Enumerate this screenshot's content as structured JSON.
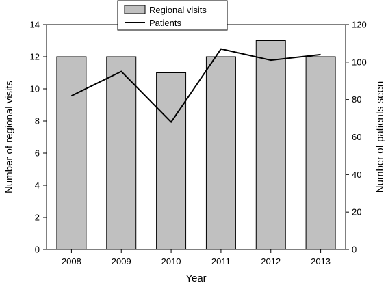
{
  "chart_data": {
    "type": "bar",
    "categories": [
      "2008",
      "2009",
      "2010",
      "2011",
      "2012",
      "2013"
    ],
    "xlabel": "Year",
    "left_axis": {
      "label": "Number of regional visits",
      "ylim": [
        0,
        14
      ],
      "ticks": [
        "0",
        "2",
        "4",
        "6",
        "8",
        "10",
        "12",
        "14"
      ]
    },
    "right_axis": {
      "label": "Number of patients seen",
      "ylim": [
        0,
        120
      ],
      "ticks": [
        "0",
        "20",
        "40",
        "60",
        "80",
        "100",
        "120"
      ]
    },
    "series": [
      {
        "name": "Regional visits",
        "type": "bar",
        "axis": "left",
        "values": [
          12,
          12,
          11,
          12,
          13,
          12
        ],
        "color": "#c0c0c0"
      },
      {
        "name": "Patients",
        "type": "line",
        "axis": "right",
        "values": [
          82,
          95,
          68,
          107,
          101,
          104
        ],
        "color": "#000000"
      }
    ],
    "legend": {
      "position": "top-center",
      "entries": [
        "Regional visits",
        "Patients"
      ]
    },
    "grid": false
  }
}
